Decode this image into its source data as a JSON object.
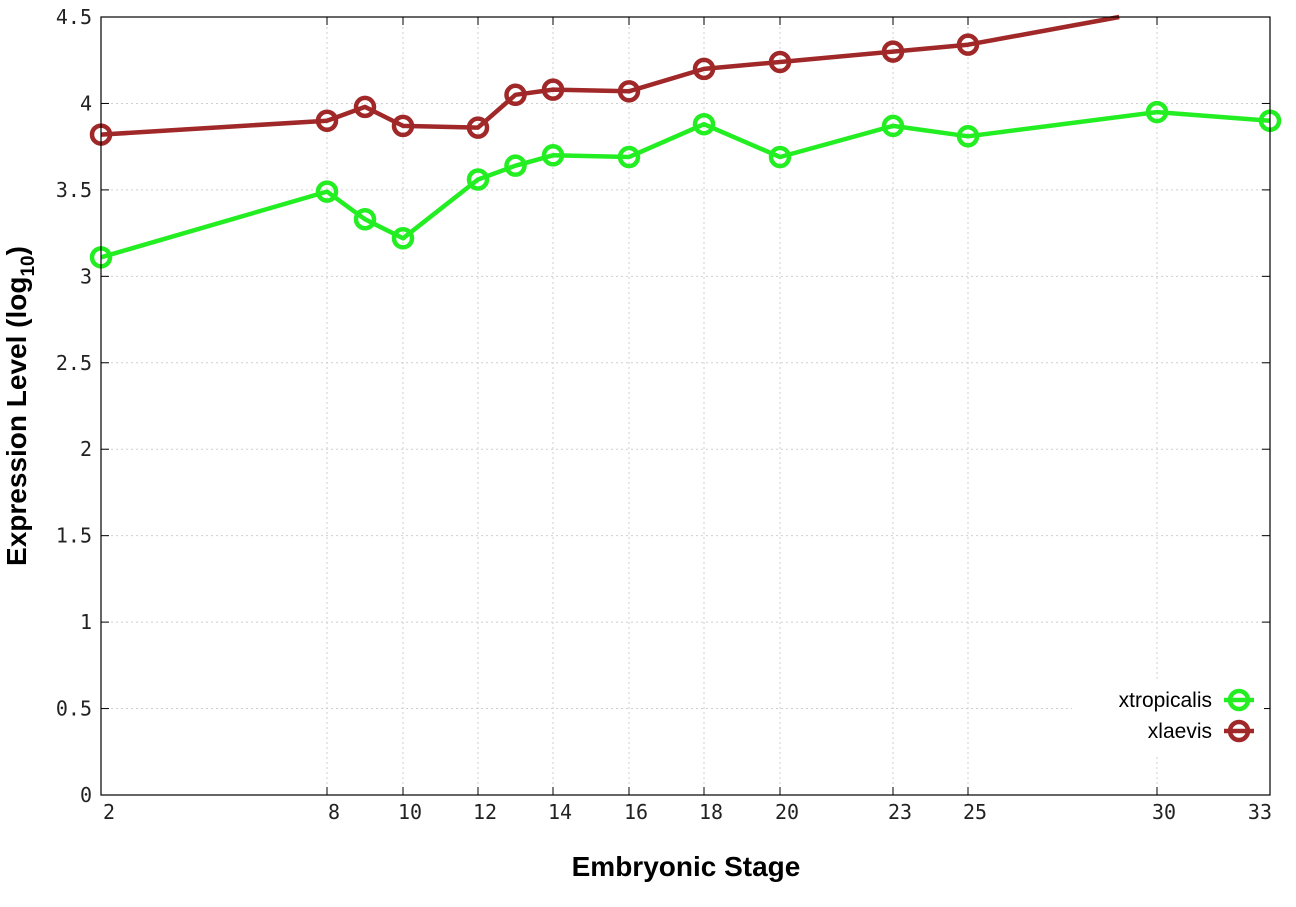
{
  "chart_data": {
    "type": "line",
    "xlabel": "Embryonic Stage",
    "ylabel_main": "Expression Level (log",
    "ylabel_sub": "10",
    "ylabel_close": ")",
    "ylim": [
      0,
      4.5
    ],
    "y_ticks": [
      "0",
      "0.5",
      "1",
      "1.5",
      "2",
      "2.5",
      "3",
      "3.5",
      "4",
      "4.5"
    ],
    "y_tick_values": [
      0,
      0.5,
      1,
      1.5,
      2,
      2.5,
      3,
      3.5,
      4,
      4.5
    ],
    "x_ticks": [
      "2",
      "8",
      "10",
      "12",
      "14",
      "16",
      "18",
      "20",
      "23",
      "25",
      "30",
      "33"
    ],
    "x_tick_values": [
      2,
      8,
      10,
      12,
      14,
      16,
      18,
      20,
      23,
      25,
      30,
      33
    ],
    "grid": true,
    "legend_position": "bottom-right",
    "series": [
      {
        "name": "xtropicalis",
        "color": "#22ee22",
        "x": [
          2,
          8,
          9,
          10,
          12,
          13,
          14,
          16,
          18,
          20,
          23,
          25,
          30,
          33
        ],
        "y": [
          3.11,
          3.49,
          3.33,
          3.22,
          3.56,
          3.64,
          3.7,
          3.69,
          3.88,
          3.69,
          3.87,
          3.81,
          3.95,
          3.9
        ]
      },
      {
        "name": "xlaevis",
        "color": "#a02828",
        "x": [
          2,
          8,
          9,
          10,
          12,
          13,
          14,
          16,
          18,
          20,
          23,
          25,
          29
        ],
        "y": [
          3.82,
          3.9,
          3.98,
          3.87,
          3.86,
          4.05,
          4.08,
          4.07,
          4.2,
          4.24,
          4.3,
          4.34,
          4.5
        ],
        "marker_count": 12
      }
    ]
  }
}
